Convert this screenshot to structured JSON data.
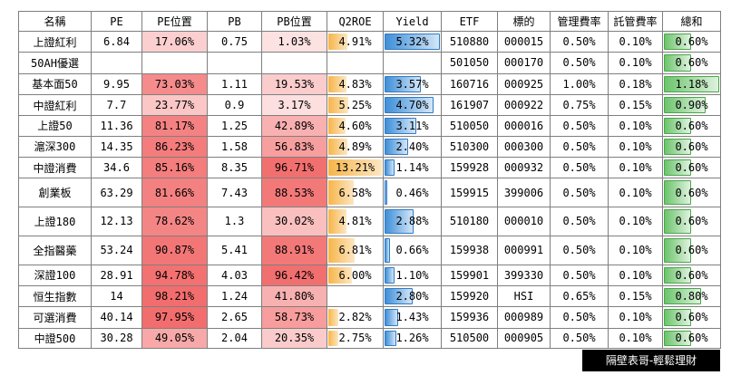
{
  "headers": [
    "名稱",
    "PE",
    "PE位置",
    "PB",
    "PB位置",
    "Q2ROE",
    "Yield",
    "ETF",
    "標的",
    "管理費率",
    "託管費率",
    "總和"
  ],
  "colors": {
    "pe_pos_high": "#f26b6b",
    "pe_pos_low": "#fde3e3",
    "pb_pos_high": "#f26b6b",
    "pb_pos_low": "#fde3e3",
    "q2roe_bar": "#f6b54a",
    "yield_bar": "#3f8fd8",
    "total_bar": "#6cc46c"
  },
  "rows": [
    {
      "name": "上證紅利",
      "pe": "6.84",
      "pe_pos": "17.06%",
      "pe_pos_v": 17.06,
      "pb": "0.75",
      "pb_pos": "1.03%",
      "pb_pos_v": 1.03,
      "q2roe": "4.91%",
      "q2roe_v": 4.91,
      "yield": "5.32%",
      "yield_v": 5.32,
      "etf": "510880",
      "underlying": "000015",
      "mgmt": "0.50%",
      "custody": "0.10%",
      "total": "0.60%",
      "total_v": 0.6
    },
    {
      "name": "50AH優選",
      "pe": "",
      "pe_pos": "",
      "pe_pos_v": null,
      "pb": "",
      "pb_pos": "",
      "pb_pos_v": null,
      "q2roe": "",
      "q2roe_v": null,
      "yield": "",
      "yield_v": null,
      "etf": "501050",
      "underlying": "000170",
      "mgmt": "0.50%",
      "custody": "0.10%",
      "total": "0.60%",
      "total_v": 0.6
    },
    {
      "name": "基本面50",
      "pe": "9.95",
      "pe_pos": "73.03%",
      "pe_pos_v": 73.03,
      "pb": "1.11",
      "pb_pos": "19.53%",
      "pb_pos_v": 19.53,
      "q2roe": "4.83%",
      "q2roe_v": 4.83,
      "yield": "3.57%",
      "yield_v": 3.57,
      "etf": "160716",
      "underlying": "000925",
      "mgmt": "1.00%",
      "custody": "0.18%",
      "total": "1.18%",
      "total_v": 1.18
    },
    {
      "name": "中證紅利",
      "pe": "7.7",
      "pe_pos": "23.77%",
      "pe_pos_v": 23.77,
      "pb": "0.9",
      "pb_pos": "3.17%",
      "pb_pos_v": 3.17,
      "q2roe": "5.25%",
      "q2roe_v": 5.25,
      "yield": "4.70%",
      "yield_v": 4.7,
      "etf": "161907",
      "underlying": "000922",
      "mgmt": "0.75%",
      "custody": "0.15%",
      "total": "0.90%",
      "total_v": 0.9
    },
    {
      "name": "上證50",
      "pe": "11.36",
      "pe_pos": "81.17%",
      "pe_pos_v": 81.17,
      "pb": "1.25",
      "pb_pos": "42.89%",
      "pb_pos_v": 42.89,
      "q2roe": "4.60%",
      "q2roe_v": 4.6,
      "yield": "3.11%",
      "yield_v": 3.11,
      "etf": "510050",
      "underlying": "000016",
      "mgmt": "0.50%",
      "custody": "0.10%",
      "total": "0.60%",
      "total_v": 0.6
    },
    {
      "name": "滬深300",
      "pe": "14.35",
      "pe_pos": "86.23%",
      "pe_pos_v": 86.23,
      "pb": "1.58",
      "pb_pos": "56.83%",
      "pb_pos_v": 56.83,
      "q2roe": "4.89%",
      "q2roe_v": 4.89,
      "yield": "2.40%",
      "yield_v": 2.4,
      "etf": "510300",
      "underlying": "000300",
      "mgmt": "0.50%",
      "custody": "0.10%",
      "total": "0.60%",
      "total_v": 0.6
    },
    {
      "name": "中證消費",
      "pe": "34.6",
      "pe_pos": "85.16%",
      "pe_pos_v": 85.16,
      "pb": "8.35",
      "pb_pos": "96.71%",
      "pb_pos_v": 96.71,
      "q2roe": "13.21%",
      "q2roe_v": 13.21,
      "yield": "1.14%",
      "yield_v": 1.14,
      "etf": "159928",
      "underlying": "000932",
      "mgmt": "0.50%",
      "custody": "0.10%",
      "total": "0.60%",
      "total_v": 0.6
    },
    {
      "name": "創業板",
      "pe": "63.29",
      "pe_pos": "81.66%",
      "pe_pos_v": 81.66,
      "pb": "7.43",
      "pb_pos": "88.53%",
      "pb_pos_v": 88.53,
      "q2roe": "6.58%",
      "q2roe_v": 6.58,
      "yield": "0.46%",
      "yield_v": 0.46,
      "etf": "159915",
      "underlying": "399006",
      "mgmt": "0.50%",
      "custody": "0.10%",
      "total": "0.60%",
      "total_v": 0.6
    },
    {
      "name": "上證180",
      "pe": "12.13",
      "pe_pos": "78.62%",
      "pe_pos_v": 78.62,
      "pb": "1.3",
      "pb_pos": "30.02%",
      "pb_pos_v": 30.02,
      "q2roe": "4.81%",
      "q2roe_v": 4.81,
      "yield": "2.88%",
      "yield_v": 2.88,
      "etf": "510180",
      "underlying": "000010",
      "mgmt": "0.50%",
      "custody": "0.10%",
      "total": "0.60%",
      "total_v": 0.6
    },
    {
      "name": "全指醫藥",
      "pe": "53.24",
      "pe_pos": "90.87%",
      "pe_pos_v": 90.87,
      "pb": "5.41",
      "pb_pos": "88.91%",
      "pb_pos_v": 88.91,
      "q2roe": "6.81%",
      "q2roe_v": 6.81,
      "yield": "0.66%",
      "yield_v": 0.66,
      "etf": "159938",
      "underlying": "000991",
      "mgmt": "0.50%",
      "custody": "0.10%",
      "total": "0.60%",
      "total_v": 0.6
    },
    {
      "name": "深證100",
      "pe": "28.91",
      "pe_pos": "94.78%",
      "pe_pos_v": 94.78,
      "pb": "4.03",
      "pb_pos": "96.42%",
      "pb_pos_v": 96.42,
      "q2roe": "6.00%",
      "q2roe_v": 6.0,
      "yield": "1.10%",
      "yield_v": 1.1,
      "etf": "159901",
      "underlying": "399330",
      "mgmt": "0.50%",
      "custody": "0.10%",
      "total": "0.60%",
      "total_v": 0.6
    },
    {
      "name": "恒生指數",
      "pe": "14",
      "pe_pos": "98.21%",
      "pe_pos_v": 98.21,
      "pb": "1.24",
      "pb_pos": "41.80%",
      "pb_pos_v": 41.8,
      "q2roe": "",
      "q2roe_v": null,
      "yield": "2.80%",
      "yield_v": 2.8,
      "etf": "159920",
      "underlying": "HSI",
      "mgmt": "0.65%",
      "custody": "0.15%",
      "total": "0.80%",
      "total_v": 0.8
    },
    {
      "name": "可選消費",
      "pe": "40.14",
      "pe_pos": "97.95%",
      "pe_pos_v": 97.95,
      "pb": "2.65",
      "pb_pos": "58.73%",
      "pb_pos_v": 58.73,
      "q2roe": "2.82%",
      "q2roe_v": 2.82,
      "yield": "1.43%",
      "yield_v": 1.43,
      "etf": "159936",
      "underlying": "000989",
      "mgmt": "0.50%",
      "custody": "0.10%",
      "total": "0.60%",
      "total_v": 0.6
    },
    {
      "name": "中證500",
      "pe": "30.28",
      "pe_pos": "49.05%",
      "pe_pos_v": 49.05,
      "pb": "2.04",
      "pb_pos": "20.35%",
      "pb_pos_v": 20.35,
      "q2roe": "2.75%",
      "q2roe_v": 2.75,
      "yield": "1.26%",
      "yield_v": 1.26,
      "etf": "510500",
      "underlying": "000905",
      "mgmt": "0.50%",
      "custody": "0.10%",
      "total": "0.60%",
      "total_v": 0.6
    }
  ],
  "footer_tag": "隔壁表哥-輕鬆理財"
}
